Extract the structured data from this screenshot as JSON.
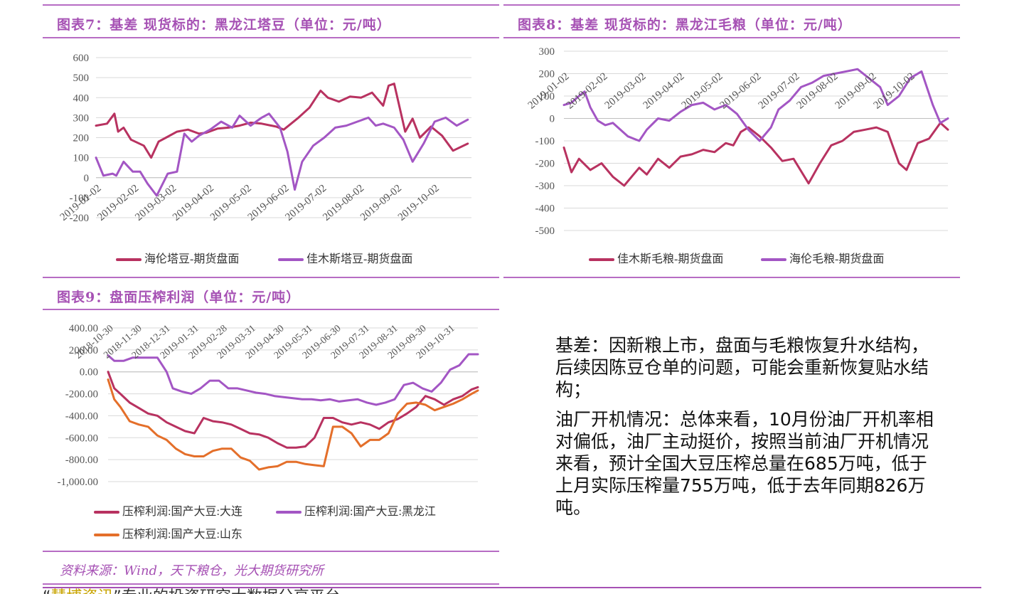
{
  "charts": [
    {
      "title": "图表7：基差 现货标的：黑龙江塔豆（单位：元/吨）",
      "chart_data": {
        "type": "line",
        "y_ticks": [
          "600",
          "500",
          "400",
          "300",
          "200",
          "100",
          "0",
          "-100",
          "-200"
        ],
        "ylim": [
          -200,
          600
        ],
        "x_ticks": [
          "2019-01-02",
          "2019-02-02",
          "2019-03-02",
          "2019-04-02",
          "2019-05-02",
          "2019-06-02",
          "2019-07-02",
          "2019-08-02",
          "2019-09-02",
          "2019-10-02"
        ],
        "xlim": [
          0,
          10.2
        ],
        "legend_position": "bottom",
        "series": [
          {
            "name": "海伦塔豆-期货盘面",
            "color": "#b83260",
            "x": [
              0,
              0.3,
              0.5,
              0.6,
              0.75,
              0.95,
              1.3,
              1.5,
              1.7,
              1.9,
              2.2,
              2.5,
              2.8,
              3.0,
              3.3,
              3.6,
              3.9,
              4.2,
              4.5,
              4.9,
              5.1,
              5.5,
              5.8,
              6.1,
              6.3,
              6.6,
              6.9,
              7.2,
              7.5,
              7.8,
              7.95,
              8.1,
              8.4,
              8.6,
              8.8,
              9.1,
              9.4,
              9.7,
              10.1
            ],
            "y": [
              260,
              270,
              320,
              230,
              250,
              190,
              160,
              100,
              180,
              200,
              230,
              240,
              220,
              225,
              245,
              250,
              260,
              275,
              270,
              255,
              240,
              300,
              350,
              435,
              400,
              380,
              405,
              400,
              425,
              360,
              460,
              470,
              230,
              295,
              200,
              255,
              210,
              135,
              170
            ]
          },
          {
            "name": "佳木斯塔豆-期货盘面",
            "color": "#a356c4",
            "x": [
              0,
              0.2,
              0.45,
              0.55,
              0.75,
              1.0,
              1.2,
              1.4,
              1.65,
              1.95,
              2.2,
              2.4,
              2.6,
              2.8,
              3.1,
              3.4,
              3.7,
              3.9,
              4.2,
              4.5,
              4.7,
              5.0,
              5.2,
              5.4,
              5.6,
              5.9,
              6.2,
              6.5,
              6.8,
              7.1,
              7.4,
              7.6,
              7.8,
              8.1,
              8.35,
              8.6,
              8.9,
              9.2,
              9.5,
              9.8,
              10.1
            ],
            "y": [
              100,
              10,
              20,
              10,
              80,
              30,
              30,
              -30,
              -90,
              20,
              30,
              220,
              180,
              210,
              240,
              280,
              250,
              310,
              260,
              300,
              320,
              250,
              130,
              -60,
              80,
              160,
              200,
              250,
              260,
              280,
              300,
              260,
              270,
              250,
              190,
              80,
              170,
              280,
              300,
              260,
              290
            ]
          }
        ]
      }
    },
    {
      "title": "图表8：基差 现货标的：黑龙江毛粮（单位：元/吨）",
      "chart_data": {
        "type": "line",
        "y_ticks": [
          "300",
          "200",
          "100",
          "0",
          "-100",
          "-200",
          "-300",
          "-400",
          "-500"
        ],
        "ylim": [
          -500,
          300
        ],
        "x_ticks": [
          "2019-01-02",
          "2019-02-02",
          "2019-03-02",
          "2019-04-02",
          "2019-05-02",
          "2019-06-02",
          "2019-07-02",
          "2019-08-02",
          "2019-09-02",
          "2019-10-02"
        ],
        "xlim": [
          0,
          10.2
        ],
        "legend_position": "bottom",
        "series": [
          {
            "name": "佳木斯毛粮-期货盘面",
            "color": "#b83260",
            "x": [
              0,
              0.2,
              0.4,
              0.7,
              1.0,
              1.3,
              1.6,
              2.0,
              2.2,
              2.5,
              2.8,
              3.1,
              3.4,
              3.7,
              4.0,
              4.3,
              4.5,
              4.7,
              4.9,
              5.2,
              5.5,
              5.8,
              6.1,
              6.5,
              6.8,
              7.1,
              7.4,
              7.7,
              8.0,
              8.3,
              8.6,
              8.9,
              9.1,
              9.4,
              9.7,
              10.0,
              10.2
            ],
            "y": [
              -130,
              -240,
              -180,
              -230,
              -200,
              -260,
              -300,
              -220,
              -250,
              -180,
              -220,
              -170,
              -160,
              -140,
              -150,
              -110,
              -120,
              -60,
              -40,
              -80,
              -130,
              -190,
              -180,
              -290,
              -200,
              -120,
              -100,
              -60,
              -50,
              -40,
              -60,
              -200,
              -230,
              -110,
              -90,
              -20,
              -50
            ]
          },
          {
            "name": "海伦毛粮-期货盘面",
            "color": "#a356c4",
            "x": [
              0,
              0.2,
              0.4,
              0.55,
              0.7,
              0.9,
              1.1,
              1.3,
              1.5,
              1.7,
              2.0,
              2.2,
              2.5,
              2.8,
              3.1,
              3.4,
              3.7,
              4.0,
              4.3,
              4.6,
              4.9,
              5.2,
              5.5,
              5.7,
              6.0,
              6.3,
              6.6,
              6.9,
              7.2,
              7.5,
              7.8,
              8.1,
              8.4,
              8.6,
              8.9,
              9.2,
              9.5,
              9.8,
              10.0,
              10.2
            ],
            "y": [
              60,
              70,
              100,
              120,
              50,
              -10,
              -30,
              -20,
              -50,
              -80,
              -100,
              -50,
              0,
              -10,
              30,
              60,
              70,
              40,
              60,
              20,
              -50,
              -100,
              -40,
              40,
              80,
              140,
              160,
              190,
              200,
              210,
              220,
              180,
              140,
              60,
              100,
              180,
              210,
              60,
              -20,
              0
            ]
          }
        ]
      }
    },
    {
      "title": "图表9：盘面压榨利润（单位：元/吨）",
      "chart_data": {
        "type": "line",
        "y_ticks": [
          "400.00",
          "200.00",
          "0.00",
          "-200.00",
          "-400.00",
          "-600.00",
          "-800.00",
          "-1,000.00"
        ],
        "ylim": [
          -1000,
          400
        ],
        "x_ticks": [
          "2018-10-30",
          "2018-11-30",
          "2018-12-31",
          "2019-01-31",
          "2019-02-28",
          "2019-03-31",
          "2019-04-30",
          "2019-05-31",
          "2019-06-30",
          "2019-07-31",
          "2019-08-31",
          "2019-09-30",
          "2019-10-31"
        ],
        "xlim": [
          0,
          12
        ],
        "legend_position": "bottom",
        "series": [
          {
            "name": "压榨利润:国产大豆:大连",
            "color": "#b83260",
            "x": [
              0,
              0.2,
              0.4,
              0.7,
              1.0,
              1.3,
              1.6,
              1.9,
              2.2,
              2.5,
              2.8,
              3.1,
              3.4,
              3.7,
              4.0,
              4.3,
              4.6,
              4.9,
              5.2,
              5.5,
              5.8,
              6.1,
              6.4,
              6.7,
              7.0,
              7.3,
              7.6,
              7.9,
              8.2,
              8.5,
              8.8,
              9.1,
              9.4,
              9.7,
              10.0,
              10.3,
              10.6,
              10.9,
              11.2,
              11.5,
              11.8,
              12.0
            ],
            "y": [
              0,
              -150,
              -200,
              -280,
              -330,
              -380,
              -400,
              -460,
              -500,
              -540,
              -560,
              -420,
              -450,
              -460,
              -480,
              -520,
              -560,
              -570,
              -600,
              -650,
              -690,
              -690,
              -680,
              -600,
              -420,
              -420,
              -460,
              -480,
              -460,
              -480,
              -520,
              -460,
              -430,
              -380,
              -320,
              -220,
              -250,
              -300,
              -250,
              -220,
              -160,
              -140
            ]
          },
          {
            "name": "压榨利润:国产大豆:黑龙江",
            "color": "#a356c4",
            "x": [
              0,
              0.2,
              0.5,
              0.8,
              1.0,
              1.3,
              1.6,
              1.9,
              2.1,
              2.4,
              2.7,
              3.0,
              3.3,
              3.6,
              3.9,
              4.2,
              4.5,
              4.8,
              5.1,
              5.4,
              5.7,
              6.0,
              6.3,
              6.6,
              6.9,
              7.2,
              7.5,
              7.8,
              8.1,
              8.4,
              8.7,
              9.0,
              9.3,
              9.6,
              9.9,
              10.2,
              10.5,
              10.8,
              11.1,
              11.4,
              11.7,
              12.0
            ],
            "y": [
              150,
              100,
              100,
              130,
              130,
              130,
              130,
              0,
              -150,
              -180,
              -200,
              -150,
              -80,
              -80,
              -150,
              -150,
              -170,
              -190,
              -200,
              -220,
              -230,
              -240,
              -250,
              -250,
              -260,
              -250,
              -270,
              -260,
              -250,
              -280,
              -300,
              -280,
              -250,
              -120,
              -100,
              -150,
              -180,
              -100,
              20,
              60,
              160,
              160
            ]
          },
          {
            "name": "压榨利润:国产大豆:山东",
            "color": "#e46f2a",
            "x": [
              0,
              0.2,
              0.4,
              0.7,
              1.0,
              1.3,
              1.6,
              1.9,
              2.2,
              2.5,
              2.8,
              3.1,
              3.4,
              3.7,
              4.0,
              4.3,
              4.6,
              4.9,
              5.2,
              5.5,
              5.8,
              6.1,
              6.4,
              6.7,
              7.0,
              7.3,
              7.6,
              7.9,
              8.2,
              8.5,
              8.8,
              9.1,
              9.4,
              9.7,
              10.0,
              10.3,
              10.6,
              10.9,
              11.2,
              11.5,
              11.8,
              12.0
            ],
            "y": [
              -70,
              -250,
              -320,
              -450,
              -480,
              -500,
              -580,
              -620,
              -700,
              -750,
              -770,
              -770,
              -720,
              -700,
              -700,
              -780,
              -810,
              -890,
              -870,
              -860,
              -820,
              -820,
              -840,
              -850,
              -860,
              -500,
              -500,
              -560,
              -680,
              -620,
              -620,
              -560,
              -380,
              -290,
              -280,
              -300,
              -350,
              -320,
              -290,
              -250,
              -200,
              -170
            ]
          }
        ]
      }
    }
  ],
  "text_block": {
    "para1": "基差：因新粮上市，盘面与毛粮恢复升水结构，后续因陈豆仓单的问题，可能会重新恢复贴水结构；",
    "para2": "油厂开机情况：总体来看，10月份油厂开机率相对偏低，油厂主动挺价，按照当前油厂开机情况来看，预计全国大豆压榨总量在685万吨，低于上月实际压榨量755万吨，低于去年同期826万吨。"
  },
  "source": "资料来源：Wind，天下粮仓，光大期货研究所",
  "footer": {
    "prefix": "“",
    "highlight": "慧博资讯",
    "rest": "”专业的投资研究大数据分享平台"
  }
}
